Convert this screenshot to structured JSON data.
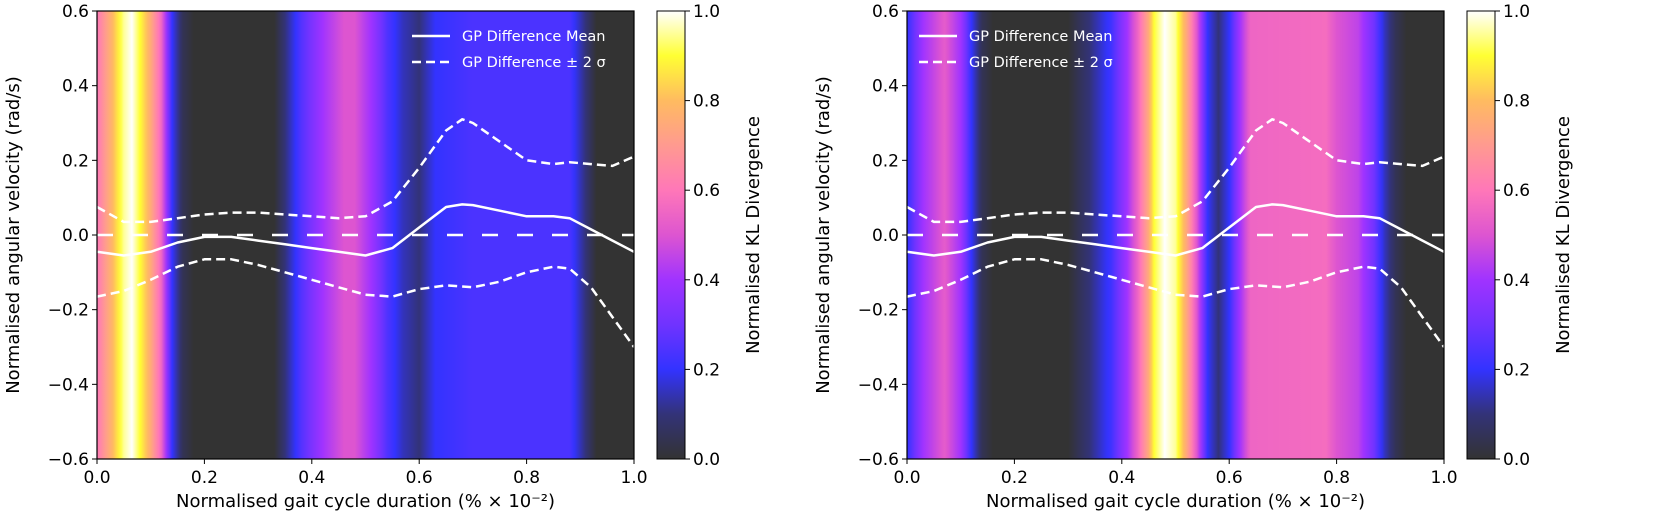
{
  "colormap": {
    "name": "gnuplot2-like",
    "stops": [
      {
        "v": 0.0,
        "color": "#333333"
      },
      {
        "v": 0.1,
        "color": "#333378"
      },
      {
        "v": 0.2,
        "color": "#3333ff"
      },
      {
        "v": 0.3,
        "color": "#7033ff"
      },
      {
        "v": 0.4,
        "color": "#a033ff"
      },
      {
        "v": 0.5,
        "color": "#dd55d0"
      },
      {
        "v": 0.6,
        "color": "#ff77b8"
      },
      {
        "v": 0.7,
        "color": "#ff9a90"
      },
      {
        "v": 0.8,
        "color": "#ffbb60"
      },
      {
        "v": 0.9,
        "color": "#ffff33"
      },
      {
        "v": 1.0,
        "color": "#ffffff"
      }
    ]
  },
  "chart_data": [
    {
      "type": "line+heatmap",
      "xlabel": "Normalised gait cycle duration (% × 10⁻²)",
      "ylabel": "Normalised angular velocity (rad/s)",
      "colorbar_label": "Normalised KL Divergence",
      "xlim": [
        0,
        1
      ],
      "ylim": [
        -0.6,
        0.6
      ],
      "clim": [
        0,
        1
      ],
      "xticks": [
        "0.0",
        "0.2",
        "0.4",
        "0.6",
        "0.8",
        "1.0"
      ],
      "yticks": [
        "−0.6",
        "−0.4",
        "−0.2",
        "0.0",
        "0.2",
        "0.4",
        "0.6"
      ],
      "cticks": [
        "0.0",
        "0.2",
        "0.4",
        "0.6",
        "0.8",
        "1.0"
      ],
      "legend_placement": "top-right",
      "legend": [
        "GP Difference Mean",
        "GP Difference ± 2 σ"
      ],
      "kl_profile": [
        [
          0,
          0.6
        ],
        [
          0.03,
          0.8
        ],
        [
          0.05,
          0.95
        ],
        [
          0.065,
          1.0
        ],
        [
          0.08,
          0.9
        ],
        [
          0.1,
          0.75
        ],
        [
          0.12,
          0.55
        ],
        [
          0.14,
          0.2
        ],
        [
          0.16,
          0.05
        ],
        [
          0.18,
          0
        ],
        [
          0.33,
          0
        ],
        [
          0.36,
          0.15
        ],
        [
          0.38,
          0.25
        ],
        [
          0.42,
          0.4
        ],
        [
          0.46,
          0.5
        ],
        [
          0.48,
          0.5
        ],
        [
          0.51,
          0.4
        ],
        [
          0.54,
          0.25
        ],
        [
          0.57,
          0.15
        ],
        [
          0.6,
          0.1
        ],
        [
          0.63,
          0.2
        ],
        [
          0.7,
          0.24
        ],
        [
          0.88,
          0.24
        ],
        [
          0.91,
          0.1
        ],
        [
          0.93,
          0
        ],
        [
          1.0,
          0
        ]
      ],
      "x": [
        0,
        0.05,
        0.1,
        0.15,
        0.2,
        0.25,
        0.3,
        0.35,
        0.4,
        0.45,
        0.5,
        0.55,
        0.6,
        0.65,
        0.68,
        0.7,
        0.75,
        0.8,
        0.85,
        0.88,
        0.92,
        0.96,
        1.0
      ],
      "mean": [
        -0.045,
        -0.055,
        -0.045,
        -0.02,
        -0.005,
        -0.005,
        -0.015,
        -0.025,
        -0.035,
        -0.045,
        -0.055,
        -0.035,
        0.02,
        0.075,
        0.082,
        0.08,
        0.065,
        0.05,
        0.05,
        0.045,
        0.015,
        -0.015,
        -0.045
      ],
      "upper": [
        0.075,
        0.035,
        0.035,
        0.045,
        0.055,
        0.06,
        0.06,
        0.055,
        0.05,
        0.045,
        0.05,
        0.09,
        0.18,
        0.28,
        0.31,
        0.3,
        0.25,
        0.2,
        0.19,
        0.195,
        0.19,
        0.185,
        0.21
      ],
      "lower": [
        -0.165,
        -0.15,
        -0.12,
        -0.085,
        -0.065,
        -0.065,
        -0.08,
        -0.1,
        -0.12,
        -0.14,
        -0.16,
        -0.165,
        -0.145,
        -0.135,
        -0.138,
        -0.14,
        -0.125,
        -0.1,
        -0.085,
        -0.09,
        -0.14,
        -0.22,
        -0.3
      ],
      "reference": 0
    },
    {
      "type": "line+heatmap",
      "xlabel": "Normalised gait cycle duration (% × 10⁻²)",
      "ylabel": "Normalised angular velocity (rad/s)",
      "colorbar_label": "Normalised KL Divergence",
      "xlim": [
        0,
        1
      ],
      "ylim": [
        -0.6,
        0.6
      ],
      "clim": [
        0,
        1
      ],
      "xticks": [
        "0.0",
        "0.2",
        "0.4",
        "0.6",
        "0.8",
        "1.0"
      ],
      "yticks": [
        "−0.6",
        "−0.4",
        "−0.2",
        "0.0",
        "0.2",
        "0.4",
        "0.6"
      ],
      "cticks": [
        "0.0",
        "0.2",
        "0.4",
        "0.6",
        "0.8",
        "1.0"
      ],
      "legend_placement": "top-left",
      "legend": [
        "GP Difference Mean",
        "GP Difference ± 2 σ"
      ],
      "kl_profile": [
        [
          0,
          0.2
        ],
        [
          0.03,
          0.4
        ],
        [
          0.07,
          0.52
        ],
        [
          0.1,
          0.4
        ],
        [
          0.12,
          0.2
        ],
        [
          0.14,
          0.05
        ],
        [
          0.16,
          0
        ],
        [
          0.3,
          0
        ],
        [
          0.34,
          0.1
        ],
        [
          0.38,
          0.22
        ],
        [
          0.41,
          0.4
        ],
        [
          0.43,
          0.55
        ],
        [
          0.45,
          0.75
        ],
        [
          0.46,
          0.9
        ],
        [
          0.48,
          1.0
        ],
        [
          0.5,
          0.95
        ],
        [
          0.52,
          0.75
        ],
        [
          0.54,
          0.5
        ],
        [
          0.56,
          0.2
        ],
        [
          0.58,
          0.1
        ],
        [
          0.6,
          0.2
        ],
        [
          0.62,
          0.4
        ],
        [
          0.64,
          0.55
        ],
        [
          0.78,
          0.57
        ],
        [
          0.8,
          0.5
        ],
        [
          0.84,
          0.45
        ],
        [
          0.87,
          0.3
        ],
        [
          0.89,
          0.15
        ],
        [
          0.91,
          0.05
        ],
        [
          0.93,
          0
        ],
        [
          1.0,
          0
        ]
      ],
      "x": [
        0,
        0.05,
        0.1,
        0.15,
        0.2,
        0.25,
        0.3,
        0.35,
        0.4,
        0.45,
        0.5,
        0.55,
        0.6,
        0.65,
        0.68,
        0.7,
        0.75,
        0.8,
        0.85,
        0.88,
        0.92,
        0.96,
        1.0
      ],
      "mean": [
        -0.045,
        -0.055,
        -0.045,
        -0.02,
        -0.005,
        -0.005,
        -0.015,
        -0.025,
        -0.035,
        -0.045,
        -0.055,
        -0.035,
        0.02,
        0.075,
        0.082,
        0.08,
        0.065,
        0.05,
        0.05,
        0.045,
        0.015,
        -0.015,
        -0.045
      ],
      "upper": [
        0.075,
        0.035,
        0.035,
        0.045,
        0.055,
        0.06,
        0.06,
        0.055,
        0.05,
        0.045,
        0.05,
        0.09,
        0.18,
        0.28,
        0.31,
        0.3,
        0.25,
        0.2,
        0.19,
        0.195,
        0.19,
        0.185,
        0.21
      ],
      "lower": [
        -0.165,
        -0.15,
        -0.12,
        -0.085,
        -0.065,
        -0.065,
        -0.08,
        -0.1,
        -0.12,
        -0.14,
        -0.16,
        -0.165,
        -0.145,
        -0.135,
        -0.138,
        -0.14,
        -0.125,
        -0.1,
        -0.085,
        -0.09,
        -0.14,
        -0.22,
        -0.3
      ],
      "reference": 0
    }
  ]
}
